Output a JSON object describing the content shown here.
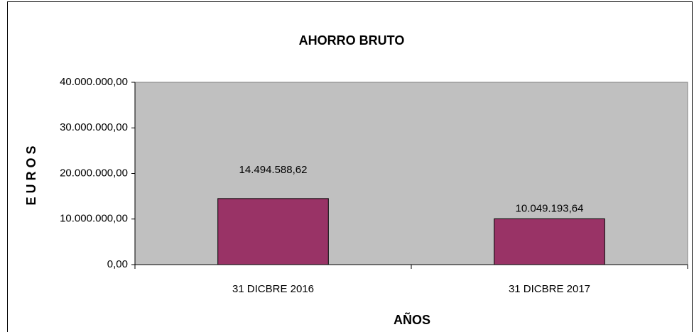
{
  "chart_data": {
    "type": "bar",
    "title": "AHORRO BRUTO",
    "x_label": "AÑOS",
    "y_label": "EUROS",
    "categories": [
      "31 DICBRE 2016",
      "31 DICBRE 2017"
    ],
    "values": [
      14494588.62,
      10049193.64
    ],
    "value_labels": [
      "14.494.588,62",
      "10.049.193,64"
    ],
    "color": "#993366",
    "ylim": [
      0,
      40000000
    ],
    "yticks": [
      {
        "value": 0,
        "label": "0,00"
      },
      {
        "value": 10000000,
        "label": "10.000.000,00"
      },
      {
        "value": 20000000,
        "label": "20.000.000,00"
      },
      {
        "value": 30000000,
        "label": "30.000.000,00"
      },
      {
        "value": 40000000,
        "label": "40.000.000,00"
      }
    ],
    "grid": false
  }
}
